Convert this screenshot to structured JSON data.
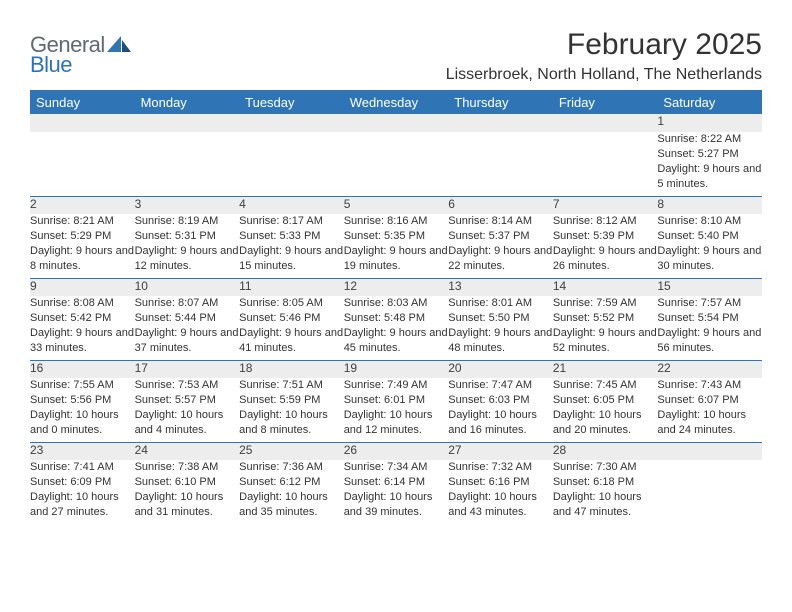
{
  "brand": {
    "general": "General",
    "blue": "Blue"
  },
  "title": "February 2025",
  "location": "Lisserbroek, North Holland, The Netherlands",
  "colors": {
    "header_bg": "#2f75b5",
    "header_text": "#ffffff",
    "daynum_bg": "#ededed",
    "text": "#333333",
    "rule": "#2f75b5",
    "logo_gray": "#5f6a72",
    "logo_blue": "#2f75b5"
  },
  "columns": [
    "Sunday",
    "Monday",
    "Tuesday",
    "Wednesday",
    "Thursday",
    "Friday",
    "Saturday"
  ],
  "weeks": [
    [
      null,
      null,
      null,
      null,
      null,
      null,
      {
        "d": "1",
        "sr": "8:22 AM",
        "ss": "5:27 PM",
        "dl": "9 hours and 5 minutes."
      }
    ],
    [
      {
        "d": "2",
        "sr": "8:21 AM",
        "ss": "5:29 PM",
        "dl": "9 hours and 8 minutes."
      },
      {
        "d": "3",
        "sr": "8:19 AM",
        "ss": "5:31 PM",
        "dl": "9 hours and 12 minutes."
      },
      {
        "d": "4",
        "sr": "8:17 AM",
        "ss": "5:33 PM",
        "dl": "9 hours and 15 minutes."
      },
      {
        "d": "5",
        "sr": "8:16 AM",
        "ss": "5:35 PM",
        "dl": "9 hours and 19 minutes."
      },
      {
        "d": "6",
        "sr": "8:14 AM",
        "ss": "5:37 PM",
        "dl": "9 hours and 22 minutes."
      },
      {
        "d": "7",
        "sr": "8:12 AM",
        "ss": "5:39 PM",
        "dl": "9 hours and 26 minutes."
      },
      {
        "d": "8",
        "sr": "8:10 AM",
        "ss": "5:40 PM",
        "dl": "9 hours and 30 minutes."
      }
    ],
    [
      {
        "d": "9",
        "sr": "8:08 AM",
        "ss": "5:42 PM",
        "dl": "9 hours and 33 minutes."
      },
      {
        "d": "10",
        "sr": "8:07 AM",
        "ss": "5:44 PM",
        "dl": "9 hours and 37 minutes."
      },
      {
        "d": "11",
        "sr": "8:05 AM",
        "ss": "5:46 PM",
        "dl": "9 hours and 41 minutes."
      },
      {
        "d": "12",
        "sr": "8:03 AM",
        "ss": "5:48 PM",
        "dl": "9 hours and 45 minutes."
      },
      {
        "d": "13",
        "sr": "8:01 AM",
        "ss": "5:50 PM",
        "dl": "9 hours and 48 minutes."
      },
      {
        "d": "14",
        "sr": "7:59 AM",
        "ss": "5:52 PM",
        "dl": "9 hours and 52 minutes."
      },
      {
        "d": "15",
        "sr": "7:57 AM",
        "ss": "5:54 PM",
        "dl": "9 hours and 56 minutes."
      }
    ],
    [
      {
        "d": "16",
        "sr": "7:55 AM",
        "ss": "5:56 PM",
        "dl": "10 hours and 0 minutes."
      },
      {
        "d": "17",
        "sr": "7:53 AM",
        "ss": "5:57 PM",
        "dl": "10 hours and 4 minutes."
      },
      {
        "d": "18",
        "sr": "7:51 AM",
        "ss": "5:59 PM",
        "dl": "10 hours and 8 minutes."
      },
      {
        "d": "19",
        "sr": "7:49 AM",
        "ss": "6:01 PM",
        "dl": "10 hours and 12 minutes."
      },
      {
        "d": "20",
        "sr": "7:47 AM",
        "ss": "6:03 PM",
        "dl": "10 hours and 16 minutes."
      },
      {
        "d": "21",
        "sr": "7:45 AM",
        "ss": "6:05 PM",
        "dl": "10 hours and 20 minutes."
      },
      {
        "d": "22",
        "sr": "7:43 AM",
        "ss": "6:07 PM",
        "dl": "10 hours and 24 minutes."
      }
    ],
    [
      {
        "d": "23",
        "sr": "7:41 AM",
        "ss": "6:09 PM",
        "dl": "10 hours and 27 minutes."
      },
      {
        "d": "24",
        "sr": "7:38 AM",
        "ss": "6:10 PM",
        "dl": "10 hours and 31 minutes."
      },
      {
        "d": "25",
        "sr": "7:36 AM",
        "ss": "6:12 PM",
        "dl": "10 hours and 35 minutes."
      },
      {
        "d": "26",
        "sr": "7:34 AM",
        "ss": "6:14 PM",
        "dl": "10 hours and 39 minutes."
      },
      {
        "d": "27",
        "sr": "7:32 AM",
        "ss": "6:16 PM",
        "dl": "10 hours and 43 minutes."
      },
      {
        "d": "28",
        "sr": "7:30 AM",
        "ss": "6:18 PM",
        "dl": "10 hours and 47 minutes."
      },
      null
    ]
  ],
  "labels": {
    "sunrise": "Sunrise: ",
    "sunset": "Sunset: ",
    "daylight": "Daylight: "
  }
}
